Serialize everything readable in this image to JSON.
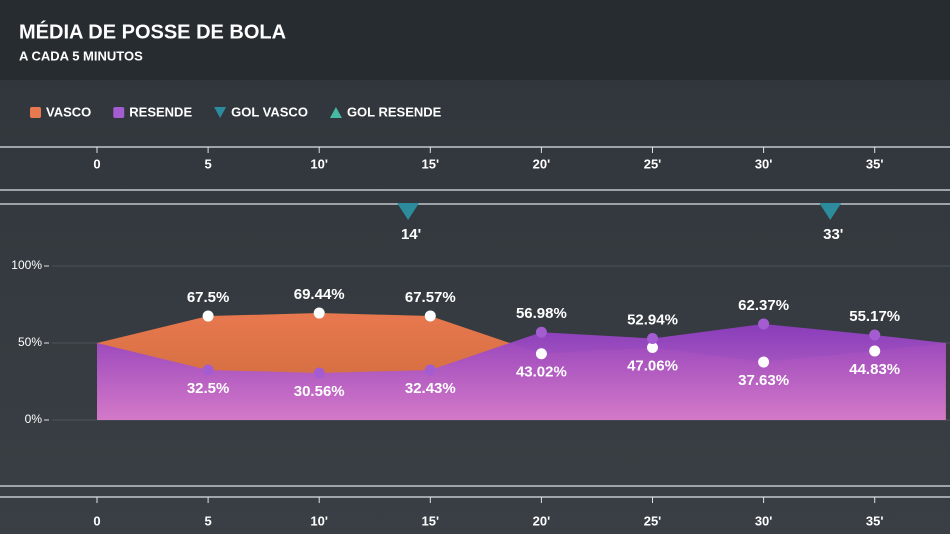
{
  "chart_data": {
    "type": "area",
    "title": "MÉDIA DE POSSE DE BOLA",
    "subtitle": "A CADA 5 MINUTOS",
    "x": [
      0,
      5,
      10,
      15,
      20,
      25,
      30,
      35,
      38.2
    ],
    "xlim": [
      0,
      38.2
    ],
    "xticks": [
      0,
      5,
      {
        "value": 10,
        "label": "10'"
      },
      {
        "value": 15,
        "label": "15'"
      },
      {
        "value": 20,
        "label": "20'"
      },
      {
        "value": 25,
        "label": "25'"
      },
      {
        "value": 30,
        "label": "30'"
      },
      {
        "value": 35,
        "label": "35'"
      }
    ],
    "ylim": [
      0,
      100
    ],
    "yticks": [
      {
        "value": 0,
        "label": "0%"
      },
      {
        "value": 50,
        "label": "50%"
      },
      {
        "value": 100,
        "label": "100%"
      }
    ],
    "series": [
      {
        "name": "VASCO",
        "color": "#e8784f",
        "values": [
          50,
          67.5,
          69.44,
          67.57,
          43.02,
          47.06,
          37.63,
          44.83,
          50
        ],
        "value_labels": [
          null,
          "67.5%",
          "69.44%",
          "67.57%",
          "43.02%",
          "47.06%",
          "37.63%",
          "44.83%",
          null
        ]
      },
      {
        "name": "RESENDE",
        "color": "#a45dd0",
        "values": [
          50,
          32.5,
          30.56,
          32.43,
          56.98,
          52.94,
          62.37,
          55.17,
          50
        ],
        "value_labels": [
          null,
          "32.5%",
          "30.56%",
          "32.43%",
          "56.98%",
          "52.94%",
          "62.37%",
          "55.17%",
          null
        ]
      }
    ],
    "goals": [
      {
        "name": "GOL VASCO",
        "color": "#2c8c9e",
        "direction": "down",
        "x": [
          14,
          33
        ],
        "labels": [
          "14'",
          "33'"
        ]
      },
      {
        "name": "GOL RESENDE",
        "color": "#45b9a4",
        "direction": "up",
        "x": [],
        "labels": []
      }
    ]
  }
}
